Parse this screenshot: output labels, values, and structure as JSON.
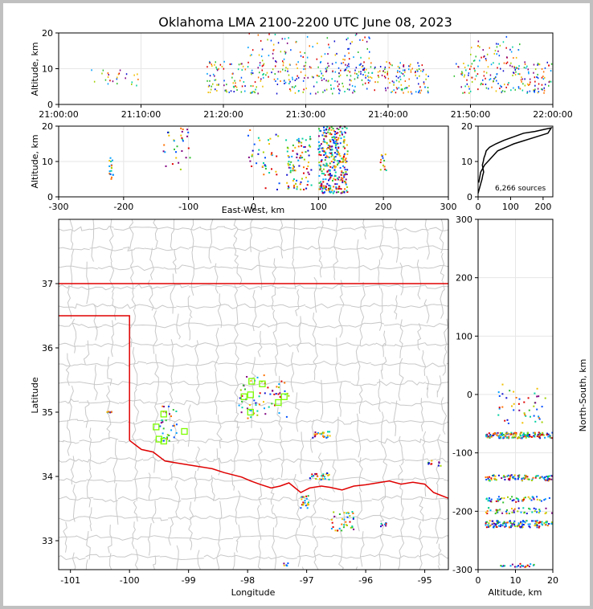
{
  "title": "Oklahoma LMA 2100-2200 UTC June 08, 2023",
  "colors": {
    "frame": "#c0c0c0",
    "state_border": "#e00000",
    "county_line": "#c8c8c8",
    "station": "#7cfc00"
  },
  "chart_data": [
    {
      "id": "time_altitude",
      "type": "scatter",
      "ylabel": "Altitude, km",
      "ylim": [
        0,
        20
      ],
      "yticks": [
        0,
        10,
        20
      ],
      "xlim_minutes": [
        0,
        60
      ],
      "xticks": [
        "21:00:00",
        "21:10:00",
        "21:20:00",
        "21:30:00",
        "21:40:00",
        "21:50:00",
        "22:00:00"
      ],
      "grid": true,
      "clusters": [
        {
          "t": [
            4,
            10
          ],
          "alt": [
            5,
            10
          ],
          "n": 25
        },
        {
          "t": [
            18,
            45
          ],
          "alt": [
            3,
            12
          ],
          "n": 420
        },
        {
          "t": [
            23,
            38
          ],
          "alt": [
            12,
            20
          ],
          "n": 80
        },
        {
          "t": [
            48,
            60
          ],
          "alt": [
            3,
            12
          ],
          "n": 180
        },
        {
          "t": [
            50,
            56
          ],
          "alt": [
            12,
            19
          ],
          "n": 40
        }
      ]
    },
    {
      "id": "ew_altitude",
      "type": "scatter",
      "xlabel": "East-West, km",
      "ylabel": "Altitude, km",
      "xlim": [
        -300,
        300
      ],
      "ylim": [
        0,
        20
      ],
      "xticks": [
        "-300",
        "-200",
        "-100",
        "0",
        "100",
        "200",
        "300"
      ],
      "yticks": [
        0,
        10,
        20
      ],
      "grid": true,
      "clusters": [
        {
          "x": [
            -222,
            -216
          ],
          "alt": [
            5,
            11
          ],
          "n": 18
        },
        {
          "x": [
            -140,
            -95
          ],
          "alt": [
            7,
            20
          ],
          "n": 30
        },
        {
          "x": [
            -10,
            40
          ],
          "alt": [
            2,
            19
          ],
          "n": 40
        },
        {
          "x": [
            50,
            90
          ],
          "alt": [
            2,
            17
          ],
          "n": 90
        },
        {
          "x": [
            100,
            145
          ],
          "alt": [
            1,
            20
          ],
          "n": 320
        },
        {
          "x": [
            195,
            205
          ],
          "alt": [
            7,
            12
          ],
          "n": 12
        }
      ]
    },
    {
      "id": "altitude_histogram",
      "type": "line",
      "ylim": [
        0,
        20
      ],
      "xlim": [
        0,
        230
      ],
      "xticks": [
        "0",
        "100",
        "200"
      ],
      "yticks": [
        "0",
        "10",
        "20"
      ],
      "note": "6,266 sources",
      "x": [
        0,
        3,
        6,
        9,
        12,
        14,
        17,
        15,
        13,
        16,
        18,
        22,
        25,
        35,
        55,
        80,
        110,
        140,
        175,
        200,
        225,
        215,
        180,
        110,
        60,
        40,
        20,
        8,
        2
      ],
      "y": [
        1,
        2,
        3,
        4,
        5,
        6,
        7,
        8,
        9,
        10,
        11,
        12,
        13,
        14,
        15,
        16,
        17,
        18,
        18.5,
        19,
        19.5,
        18,
        17,
        15,
        13,
        11,
        9,
        7,
        4
      ]
    },
    {
      "id": "plan_view",
      "type": "scatter",
      "xlabel": "Longitude",
      "ylabel": "Latitude",
      "xlim": [
        -101.2,
        -94.6
      ],
      "ylim": [
        32.55,
        38.0
      ],
      "xticks": [
        "-101",
        "-100",
        "-99",
        "-98",
        "-97",
        "-96",
        "-95"
      ],
      "yticks": [
        "33",
        "34",
        "35",
        "36",
        "37"
      ],
      "stations": [
        [
          -97.93,
          35.48
        ],
        [
          -97.75,
          35.44
        ],
        [
          -98.06,
          35.24
        ],
        [
          -97.95,
          35.27
        ],
        [
          -97.38,
          35.24
        ],
        [
          -97.48,
          35.15
        ],
        [
          -97.95,
          35.0
        ],
        [
          -99.42,
          34.97
        ],
        [
          -99.55,
          34.77
        ],
        [
          -99.07,
          34.7
        ],
        [
          -99.5,
          34.58
        ],
        [
          -99.42,
          34.55
        ]
      ],
      "clusters": [
        {
          "lon": [
            -100.38,
            -100.3
          ],
          "lat": [
            34.99,
            35.01
          ],
          "n": 8
        },
        {
          "lon": [
            -99.5,
            -99.2
          ],
          "lat": [
            34.55,
            35.1
          ],
          "n": 30
        },
        {
          "lon": [
            -98.15,
            -97.3
          ],
          "lat": [
            34.9,
            35.6
          ],
          "n": 60
        },
        {
          "lon": [
            -96.9,
            -96.6
          ],
          "lat": [
            34.6,
            34.7
          ],
          "n": 25
        },
        {
          "lon": [
            -96.95,
            -96.6
          ],
          "lat": [
            33.95,
            34.05
          ],
          "n": 25
        },
        {
          "lon": [
            -97.1,
            -96.95
          ],
          "lat": [
            33.5,
            33.7
          ],
          "n": 20
        },
        {
          "lon": [
            -96.6,
            -96.2
          ],
          "lat": [
            33.15,
            33.45
          ],
          "n": 35
        },
        {
          "lon": [
            -95.75,
            -95.65
          ],
          "lat": [
            33.22,
            33.28
          ],
          "n": 8
        },
        {
          "lon": [
            -95.0,
            -94.7
          ],
          "lat": [
            34.15,
            34.25
          ],
          "n": 10
        },
        {
          "lon": [
            -97.4,
            -97.3
          ],
          "lat": [
            32.6,
            32.65
          ],
          "n": 5
        }
      ]
    },
    {
      "id": "altitude_ns",
      "type": "scatter",
      "xlabel": "Altitude, km",
      "ylabel": "North-South, km",
      "xlim": [
        0,
        20
      ],
      "ylim": [
        -300,
        300
      ],
      "xticks": [
        "0",
        "10",
        "20"
      ],
      "yticks": [
        "-300",
        "-200",
        "-100",
        "0",
        "100",
        "200",
        "300"
      ],
      "grid": true,
      "clusters": [
        {
          "alt": [
            2,
            20
          ],
          "ns": [
            -75,
            -65
          ],
          "n": 160
        },
        {
          "alt": [
            5,
            18
          ],
          "ns": [
            -50,
            20
          ],
          "n": 45
        },
        {
          "alt": [
            2,
            20
          ],
          "ns": [
            -148,
            -138
          ],
          "n": 100
        },
        {
          "alt": [
            2,
            20
          ],
          "ns": [
            -185,
            -175
          ],
          "n": 50
        },
        {
          "alt": [
            2,
            20
          ],
          "ns": [
            -228,
            -216
          ],
          "n": 130
        },
        {
          "alt": [
            2,
            20
          ],
          "ns": [
            -204,
            -194
          ],
          "n": 45
        },
        {
          "alt": [
            6,
            15
          ],
          "ns": [
            -296,
            -290
          ],
          "n": 25
        }
      ]
    }
  ]
}
